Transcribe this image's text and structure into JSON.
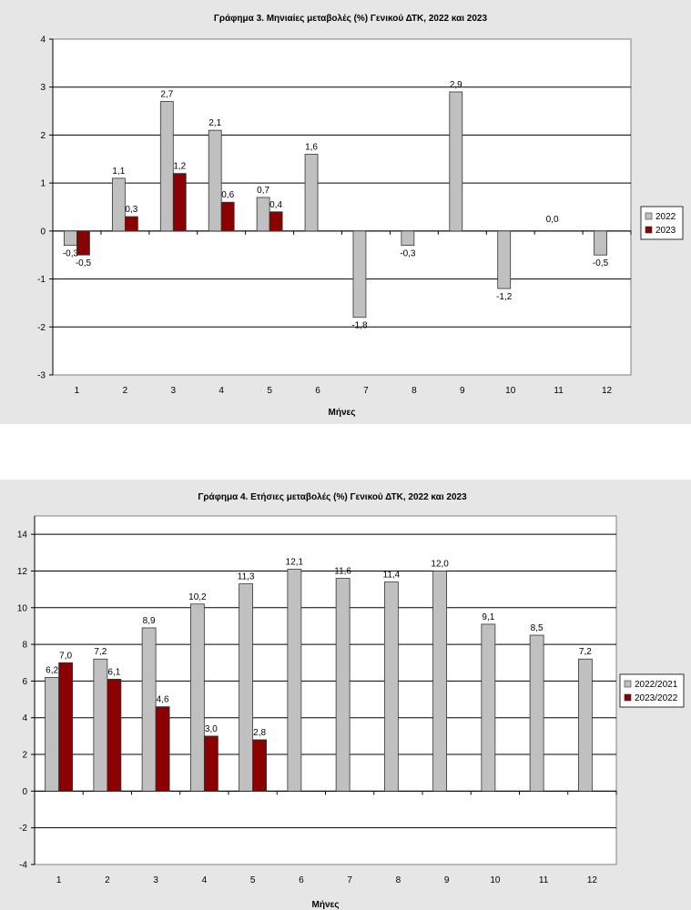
{
  "chart_data": [
    {
      "type": "bar",
      "title": "Γράφημα 3. Μηνιαίες μεταβολές (%) Γενικού ΔΤΚ, 2022 και 2023",
      "xlabel": "Μήνες",
      "ylabel": "",
      "ylim": [
        -3,
        4
      ],
      "yticks": [
        "-3",
        "-2",
        "-1",
        "0",
        "1",
        "2",
        "3",
        "4"
      ],
      "ytick_values": [
        -3,
        -2,
        -1,
        0,
        1,
        2,
        3,
        4
      ],
      "categories": [
        "1",
        "2",
        "3",
        "4",
        "5",
        "6",
        "7",
        "8",
        "9",
        "10",
        "11",
        "12"
      ],
      "grid": true,
      "legend": "right",
      "series": [
        {
          "name": "2022",
          "color": "#c0c0c0",
          "values": [
            -0.3,
            1.1,
            2.7,
            2.1,
            0.7,
            1.6,
            -1.8,
            -0.3,
            2.9,
            -1.2,
            0.0,
            -0.5
          ],
          "labels": [
            "-0,3",
            "1,1",
            "2,7",
            "2,1",
            "0,7",
            "1,6",
            "-1,8",
            "-0,3",
            "2,9",
            "-1,2",
            "0,0",
            "-0,5"
          ]
        },
        {
          "name": "2023",
          "color": "#8b0000",
          "values": [
            -0.5,
            0.3,
            1.2,
            0.6,
            0.4,
            null,
            null,
            null,
            null,
            null,
            null,
            null
          ],
          "labels": [
            "-0,5",
            "0,3",
            "1,2",
            "0,6",
            "0,4",
            null,
            null,
            null,
            null,
            null,
            null,
            null
          ]
        }
      ]
    },
    {
      "type": "bar",
      "title": "Γράφημα 4. Ετήσιες μεταβολές (%) Γενικού ΔΤΚ, 2022 και 2023",
      "xlabel": "Μήνες",
      "ylabel": "",
      "ylim": [
        -4,
        15
      ],
      "yticks": [
        "-4",
        "-2",
        "0",
        "2",
        "4",
        "6",
        "8",
        "10",
        "12",
        "14"
      ],
      "ytick_values": [
        -4,
        -2,
        0,
        2,
        4,
        6,
        8,
        10,
        12,
        14
      ],
      "categories": [
        "1",
        "2",
        "3",
        "4",
        "5",
        "6",
        "7",
        "8",
        "9",
        "10",
        "11",
        "12"
      ],
      "grid": true,
      "legend": "right",
      "series": [
        {
          "name": "2022/2021",
          "color": "#c0c0c0",
          "values": [
            6.2,
            7.2,
            8.9,
            10.2,
            11.3,
            12.1,
            11.6,
            11.4,
            12.0,
            9.1,
            8.5,
            7.2
          ],
          "labels": [
            "6,2",
            "7,2",
            "8,9",
            "10,2",
            "11,3",
            "12,1",
            "11,6",
            "11,4",
            "12,0",
            "9,1",
            "8,5",
            "7,2"
          ]
        },
        {
          "name": "2023/2022",
          "color": "#8b0000",
          "values": [
            7.0,
            6.1,
            4.6,
            3.0,
            2.8,
            null,
            null,
            null,
            null,
            null,
            null,
            null
          ],
          "labels": [
            "7,0",
            "6,1",
            "4,6",
            "3,0",
            "2,8",
            null,
            null,
            null,
            null,
            null,
            null,
            null
          ]
        }
      ]
    }
  ]
}
